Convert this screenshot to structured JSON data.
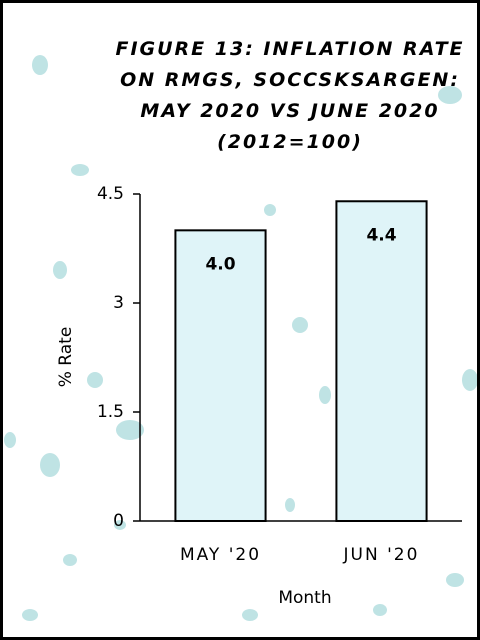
{
  "chart_data": {
    "type": "bar",
    "title": "FIGURE 13: INFLATION RATE ON RMGS, SOCCSKSARGEN: MAY 2020 VS JUNE 2020 (2012=100)",
    "x_label": "Month",
    "y_label": "% Rate",
    "categories": [
      "MAY '20",
      "JUN '20"
    ],
    "values": [
      4.0,
      4.4
    ],
    "value_labels": [
      "4.0",
      "4.4"
    ],
    "color": "#dff4f8",
    "ylim": [
      0,
      4.5
    ],
    "yticks": [
      0,
      1.5,
      3,
      4.5
    ],
    "grid": false
  }
}
